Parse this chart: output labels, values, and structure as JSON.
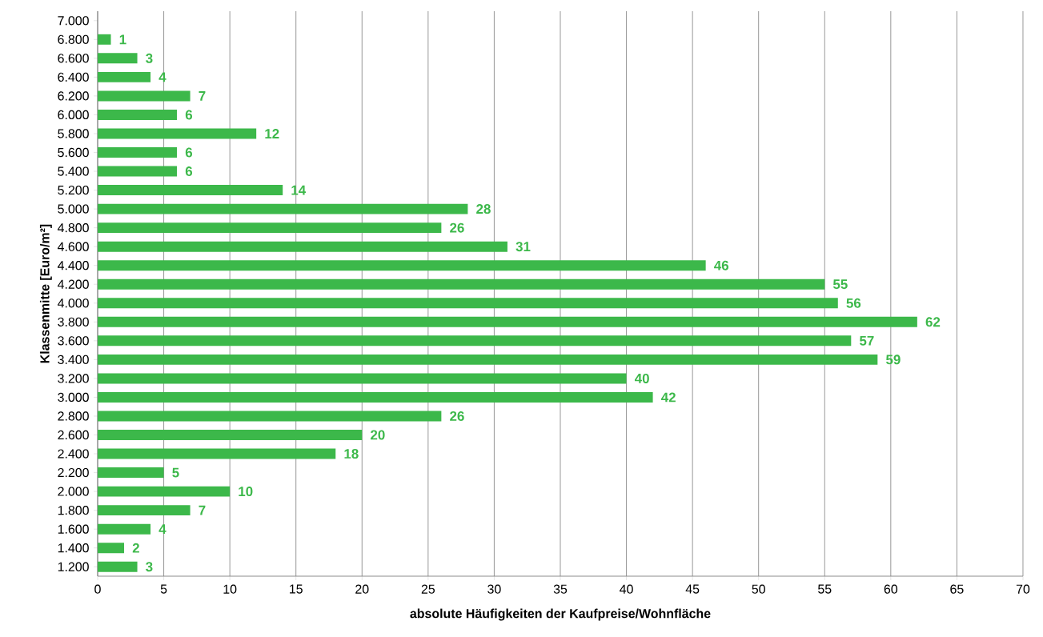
{
  "chart_data": {
    "type": "bar",
    "orientation": "horizontal",
    "xlabel": "absolute Häufigkeiten der Kaufpreise/Wohnfläche",
    "ylabel": "Klassenmitte [Euro/m²]",
    "categories": [
      "7.000",
      "6.800",
      "6.600",
      "6.400",
      "6.200",
      "6.000",
      "5.800",
      "5.600",
      "5.400",
      "5.200",
      "5.000",
      "4.800",
      "4.600",
      "4.400",
      "4.200",
      "4.000",
      "3.800",
      "3.600",
      "3.400",
      "3.200",
      "3.000",
      "2.800",
      "2.600",
      "2.400",
      "2.200",
      "2.000",
      "1.800",
      "1.600",
      "1.400",
      "1.200"
    ],
    "values": [
      null,
      1,
      3,
      4,
      7,
      6,
      12,
      6,
      6,
      14,
      28,
      26,
      31,
      46,
      55,
      56,
      62,
      57,
      59,
      40,
      42,
      26,
      20,
      18,
      5,
      10,
      7,
      4,
      2,
      3
    ],
    "color": "#3cb84a",
    "data_labels": true,
    "grid": "x",
    "xlim": [
      0,
      70
    ],
    "xticks": [
      0,
      5,
      10,
      15,
      20,
      25,
      30,
      35,
      40,
      45,
      50,
      55,
      60,
      65,
      70
    ]
  }
}
